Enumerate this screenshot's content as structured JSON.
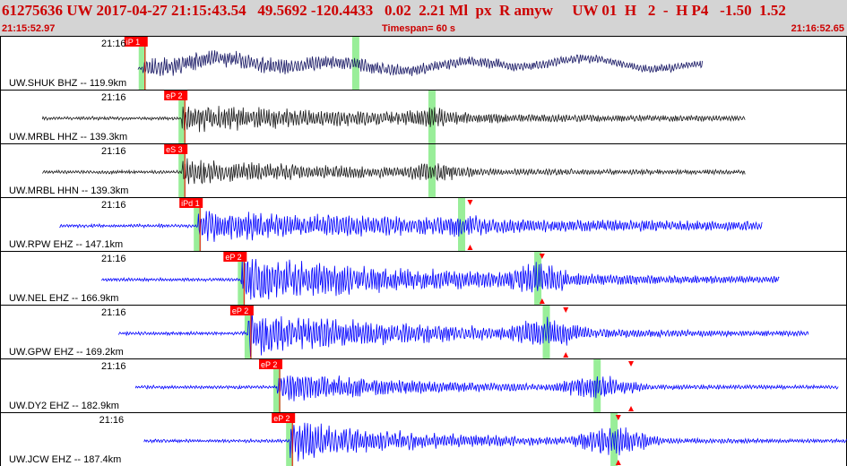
{
  "header": {
    "title": "61275636 UW 2017-04-27 21:15:43.54   49.5692 -120.4433   0.02  2.21 Ml  px  R amyw     UW 01  H   2  -  H P4   -1.50  1.52",
    "start_time": "21:15:52.97",
    "timespan": "Timespan=  60 s",
    "end_time": "21:16:52.65"
  },
  "colors": {
    "header_bg": "#d4d4d4",
    "header_text": "#cc0000",
    "trace_black": "#1a1a1a",
    "trace_navy": "#1a1a66",
    "trace_blue": "#0000ff",
    "pick_flag": "#ff0000",
    "pick_window": "#99ee99",
    "s_marker": "#ff0000"
  },
  "panels": [
    {
      "station": "UW.SHUK BHZ -- 119.9km",
      "minute": "21:16",
      "pick": "iP 1",
      "color": "navy",
      "start": 0.163,
      "end": 0.83,
      "p": 0.168,
      "window": 0.42,
      "amp": 0.38,
      "decay": 0.5,
      "smarker": null
    },
    {
      "station": "UW.MRBL HHZ -- 139.3km",
      "minute": "21:16",
      "pick": "eP 2",
      "color": "black",
      "start": 0.05,
      "end": 0.88,
      "p": 0.215,
      "window": 0.51,
      "amp": 0.6,
      "decay": 0.25,
      "smarker": null
    },
    {
      "station": "UW.MRBL HHN -- 139.3km",
      "minute": "21:16",
      "pick": "eS 3",
      "color": "black",
      "start": 0.05,
      "end": 0.88,
      "p": 0.215,
      "window": 0.51,
      "amp": 0.55,
      "decay": 0.2,
      "smarker": null
    },
    {
      "station": "UW.RPW EHZ -- 147.1km",
      "minute": "21:16",
      "pick": "iPd 1",
      "color": "blue",
      "start": 0.07,
      "end": 0.9,
      "p": 0.233,
      "window": 0.545,
      "amp": 0.65,
      "decay": 0.4,
      "smarker": 0.555
    },
    {
      "station": "UW.NEL EHZ -- 166.9km",
      "minute": "21:16",
      "pick": "eP 2",
      "color": "blue",
      "start": 0.12,
      "end": 0.92,
      "p": 0.285,
      "window": 0.635,
      "amp": 1.0,
      "decay": 0.25,
      "smarker": 0.64
    },
    {
      "station": "UW.GPW EHZ -- 169.2km",
      "minute": "21:16",
      "pick": "eP 2",
      "color": "blue",
      "start": 0.14,
      "end": 0.955,
      "p": 0.293,
      "window": 0.645,
      "amp": 1.0,
      "decay": 0.2,
      "smarker": 0.668
    },
    {
      "station": "UW.DY2 EHZ -- 182.9km",
      "minute": "21:16",
      "pick": "eP 2",
      "color": "blue",
      "start": 0.16,
      "end": 0.99,
      "p": 0.327,
      "window": 0.705,
      "amp": 0.7,
      "decay": 0.15,
      "smarker": 0.745
    },
    {
      "station": "UW.JCW EHZ -- 187.4km",
      "minute": "21:16",
      "pick": "eP 2",
      "color": "blue",
      "start": 0.17,
      "end": 1.0,
      "p": 0.342,
      "window": 0.725,
      "amp": 0.9,
      "decay": 0.15,
      "smarker": 0.73
    }
  ]
}
